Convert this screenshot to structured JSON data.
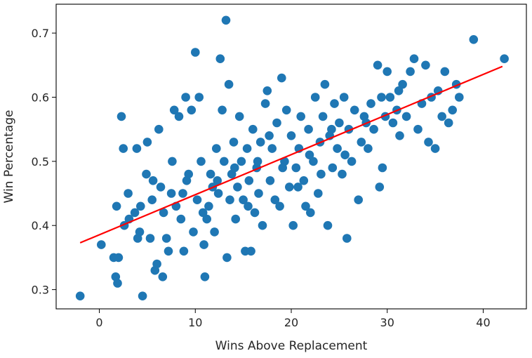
{
  "chart_data": {
    "type": "scatter",
    "title": "",
    "xlabel": "Wins Above Replacement",
    "ylabel": "Win Percentage",
    "xlim": [
      -4.5,
      44.5
    ],
    "ylim": [
      0.27,
      0.745
    ],
    "xticks": [
      0,
      10,
      20,
      30,
      40
    ],
    "yticks": [
      0.3,
      0.4,
      0.5,
      0.6,
      0.7
    ],
    "xtick_labels": [
      "0",
      "10",
      "20",
      "30",
      "40"
    ],
    "ytick_labels": [
      "0.3",
      "0.4",
      "0.5",
      "0.6",
      "0.7"
    ],
    "grid": false,
    "marker_color": "#1f77b4",
    "line_color": "#ff0000",
    "trendline": {
      "x": [
        -2.0,
        42.0
      ],
      "y": [
        0.373,
        0.648
      ]
    },
    "series": [
      {
        "values": [
          [
            -2.0,
            0.29
          ],
          [
            0.2,
            0.37
          ],
          [
            1.5,
            0.35
          ],
          [
            2.0,
            0.35
          ],
          [
            1.7,
            0.32
          ],
          [
            1.9,
            0.31
          ],
          [
            1.8,
            0.43
          ],
          [
            2.3,
            0.57
          ],
          [
            2.5,
            0.52
          ],
          [
            2.6,
            0.4
          ],
          [
            3.1,
            0.41
          ],
          [
            4.0,
            0.38
          ],
          [
            4.5,
            0.29
          ],
          [
            3.7,
            0.42
          ],
          [
            3.9,
            0.52
          ],
          [
            4.3,
            0.43
          ],
          [
            4.2,
            0.39
          ],
          [
            5.0,
            0.53
          ],
          [
            4.9,
            0.48
          ],
          [
            5.3,
            0.38
          ],
          [
            5.6,
            0.47
          ],
          [
            5.8,
            0.33
          ],
          [
            6.0,
            0.34
          ],
          [
            6.2,
            0.55
          ],
          [
            6.4,
            0.46
          ],
          [
            6.7,
            0.42
          ],
          [
            6.6,
            0.32
          ],
          [
            7.0,
            0.38
          ],
          [
            7.2,
            0.36
          ],
          [
            7.5,
            0.45
          ],
          [
            7.6,
            0.5
          ],
          [
            7.8,
            0.58
          ],
          [
            8.0,
            0.43
          ],
          [
            8.3,
            0.57
          ],
          [
            8.5,
            0.41
          ],
          [
            8.8,
            0.36
          ],
          [
            9.0,
            0.6
          ],
          [
            9.1,
            0.47
          ],
          [
            9.3,
            0.48
          ],
          [
            9.6,
            0.58
          ],
          [
            9.8,
            0.39
          ],
          [
            10.0,
            0.67
          ],
          [
            10.2,
            0.44
          ],
          [
            10.4,
            0.6
          ],
          [
            10.6,
            0.5
          ],
          [
            10.9,
            0.37
          ],
          [
            11.0,
            0.32
          ],
          [
            11.2,
            0.41
          ],
          [
            11.4,
            0.43
          ],
          [
            11.6,
            0.48
          ],
          [
            11.8,
            0.46
          ],
          [
            12.0,
            0.39
          ],
          [
            12.2,
            0.52
          ],
          [
            12.4,
            0.45
          ],
          [
            12.6,
            0.66
          ],
          [
            12.8,
            0.58
          ],
          [
            13.0,
            0.5
          ],
          [
            13.2,
            0.72
          ],
          [
            13.3,
            0.35
          ],
          [
            13.5,
            0.62
          ],
          [
            13.6,
            0.44
          ],
          [
            13.8,
            0.48
          ],
          [
            14.0,
            0.53
          ],
          [
            14.2,
            0.41
          ],
          [
            14.4,
            0.46
          ],
          [
            14.6,
            0.57
          ],
          [
            14.8,
            0.5
          ],
          [
            15.0,
            0.44
          ],
          [
            15.2,
            0.36
          ],
          [
            15.4,
            0.52
          ],
          [
            15.6,
            0.47
          ],
          [
            15.8,
            0.36
          ],
          [
            16.0,
            0.55
          ],
          [
            16.2,
            0.42
          ],
          [
            16.4,
            0.49
          ],
          [
            16.6,
            0.45
          ],
          [
            16.8,
            0.53
          ],
          [
            17.0,
            0.4
          ],
          [
            17.3,
            0.59
          ],
          [
            17.5,
            0.61
          ],
          [
            17.8,
            0.47
          ],
          [
            18.0,
            0.52
          ],
          [
            18.3,
            0.44
          ],
          [
            18.5,
            0.56
          ],
          [
            18.8,
            0.43
          ],
          [
            19.0,
            0.63
          ],
          [
            19.3,
            0.5
          ],
          [
            19.5,
            0.58
          ],
          [
            19.8,
            0.46
          ],
          [
            20.0,
            0.54
          ],
          [
            20.2,
            0.4
          ],
          [
            20.5,
            0.49
          ],
          [
            20.8,
            0.52
          ],
          [
            21.0,
            0.57
          ],
          [
            21.3,
            0.47
          ],
          [
            21.5,
            0.43
          ],
          [
            21.8,
            0.55
          ],
          [
            22.0,
            0.42
          ],
          [
            22.3,
            0.5
          ],
          [
            22.5,
            0.6
          ],
          [
            22.8,
            0.45
          ],
          [
            23.0,
            0.53
          ],
          [
            23.3,
            0.57
          ],
          [
            23.5,
            0.62
          ],
          [
            23.8,
            0.4
          ],
          [
            24.0,
            0.54
          ],
          [
            24.3,
            0.49
          ],
          [
            24.5,
            0.59
          ],
          [
            24.8,
            0.52
          ],
          [
            25.0,
            0.56
          ],
          [
            25.3,
            0.48
          ],
          [
            25.5,
            0.6
          ],
          [
            25.8,
            0.38
          ],
          [
            26.0,
            0.55
          ],
          [
            26.3,
            0.5
          ],
          [
            26.6,
            0.58
          ],
          [
            27.0,
            0.44
          ],
          [
            27.3,
            0.53
          ],
          [
            27.6,
            0.57
          ],
          [
            28.0,
            0.52
          ],
          [
            28.3,
            0.59
          ],
          [
            28.6,
            0.55
          ],
          [
            29.0,
            0.65
          ],
          [
            29.2,
            0.46
          ],
          [
            29.5,
            0.49
          ],
          [
            29.8,
            0.57
          ],
          [
            30.0,
            0.64
          ],
          [
            30.3,
            0.6
          ],
          [
            30.6,
            0.56
          ],
          [
            31.0,
            0.58
          ],
          [
            31.3,
            0.54
          ],
          [
            31.6,
            0.62
          ],
          [
            32.0,
            0.57
          ],
          [
            32.4,
            0.64
          ],
          [
            32.8,
            0.66
          ],
          [
            33.2,
            0.55
          ],
          [
            33.6,
            0.59
          ],
          [
            34.0,
            0.65
          ],
          [
            34.3,
            0.53
          ],
          [
            34.6,
            0.6
          ],
          [
            35.0,
            0.52
          ],
          [
            35.3,
            0.61
          ],
          [
            35.7,
            0.57
          ],
          [
            36.0,
            0.64
          ],
          [
            36.4,
            0.56
          ],
          [
            36.8,
            0.58
          ],
          [
            37.2,
            0.62
          ],
          [
            37.5,
            0.6
          ],
          [
            39.0,
            0.69
          ],
          [
            42.2,
            0.66
          ],
          [
            3.0,
            0.45
          ],
          [
            5.5,
            0.44
          ],
          [
            8.7,
            0.45
          ],
          [
            10.8,
            0.42
          ],
          [
            12.3,
            0.47
          ],
          [
            14.1,
            0.49
          ],
          [
            15.5,
            0.43
          ],
          [
            16.5,
            0.5
          ],
          [
            17.7,
            0.54
          ],
          [
            19.1,
            0.49
          ],
          [
            20.7,
            0.46
          ],
          [
            21.9,
            0.51
          ],
          [
            23.1,
            0.48
          ],
          [
            24.2,
            0.55
          ],
          [
            25.6,
            0.51
          ],
          [
            27.8,
            0.56
          ],
          [
            29.4,
            0.6
          ],
          [
            31.2,
            0.61
          ]
        ]
      }
    ]
  }
}
